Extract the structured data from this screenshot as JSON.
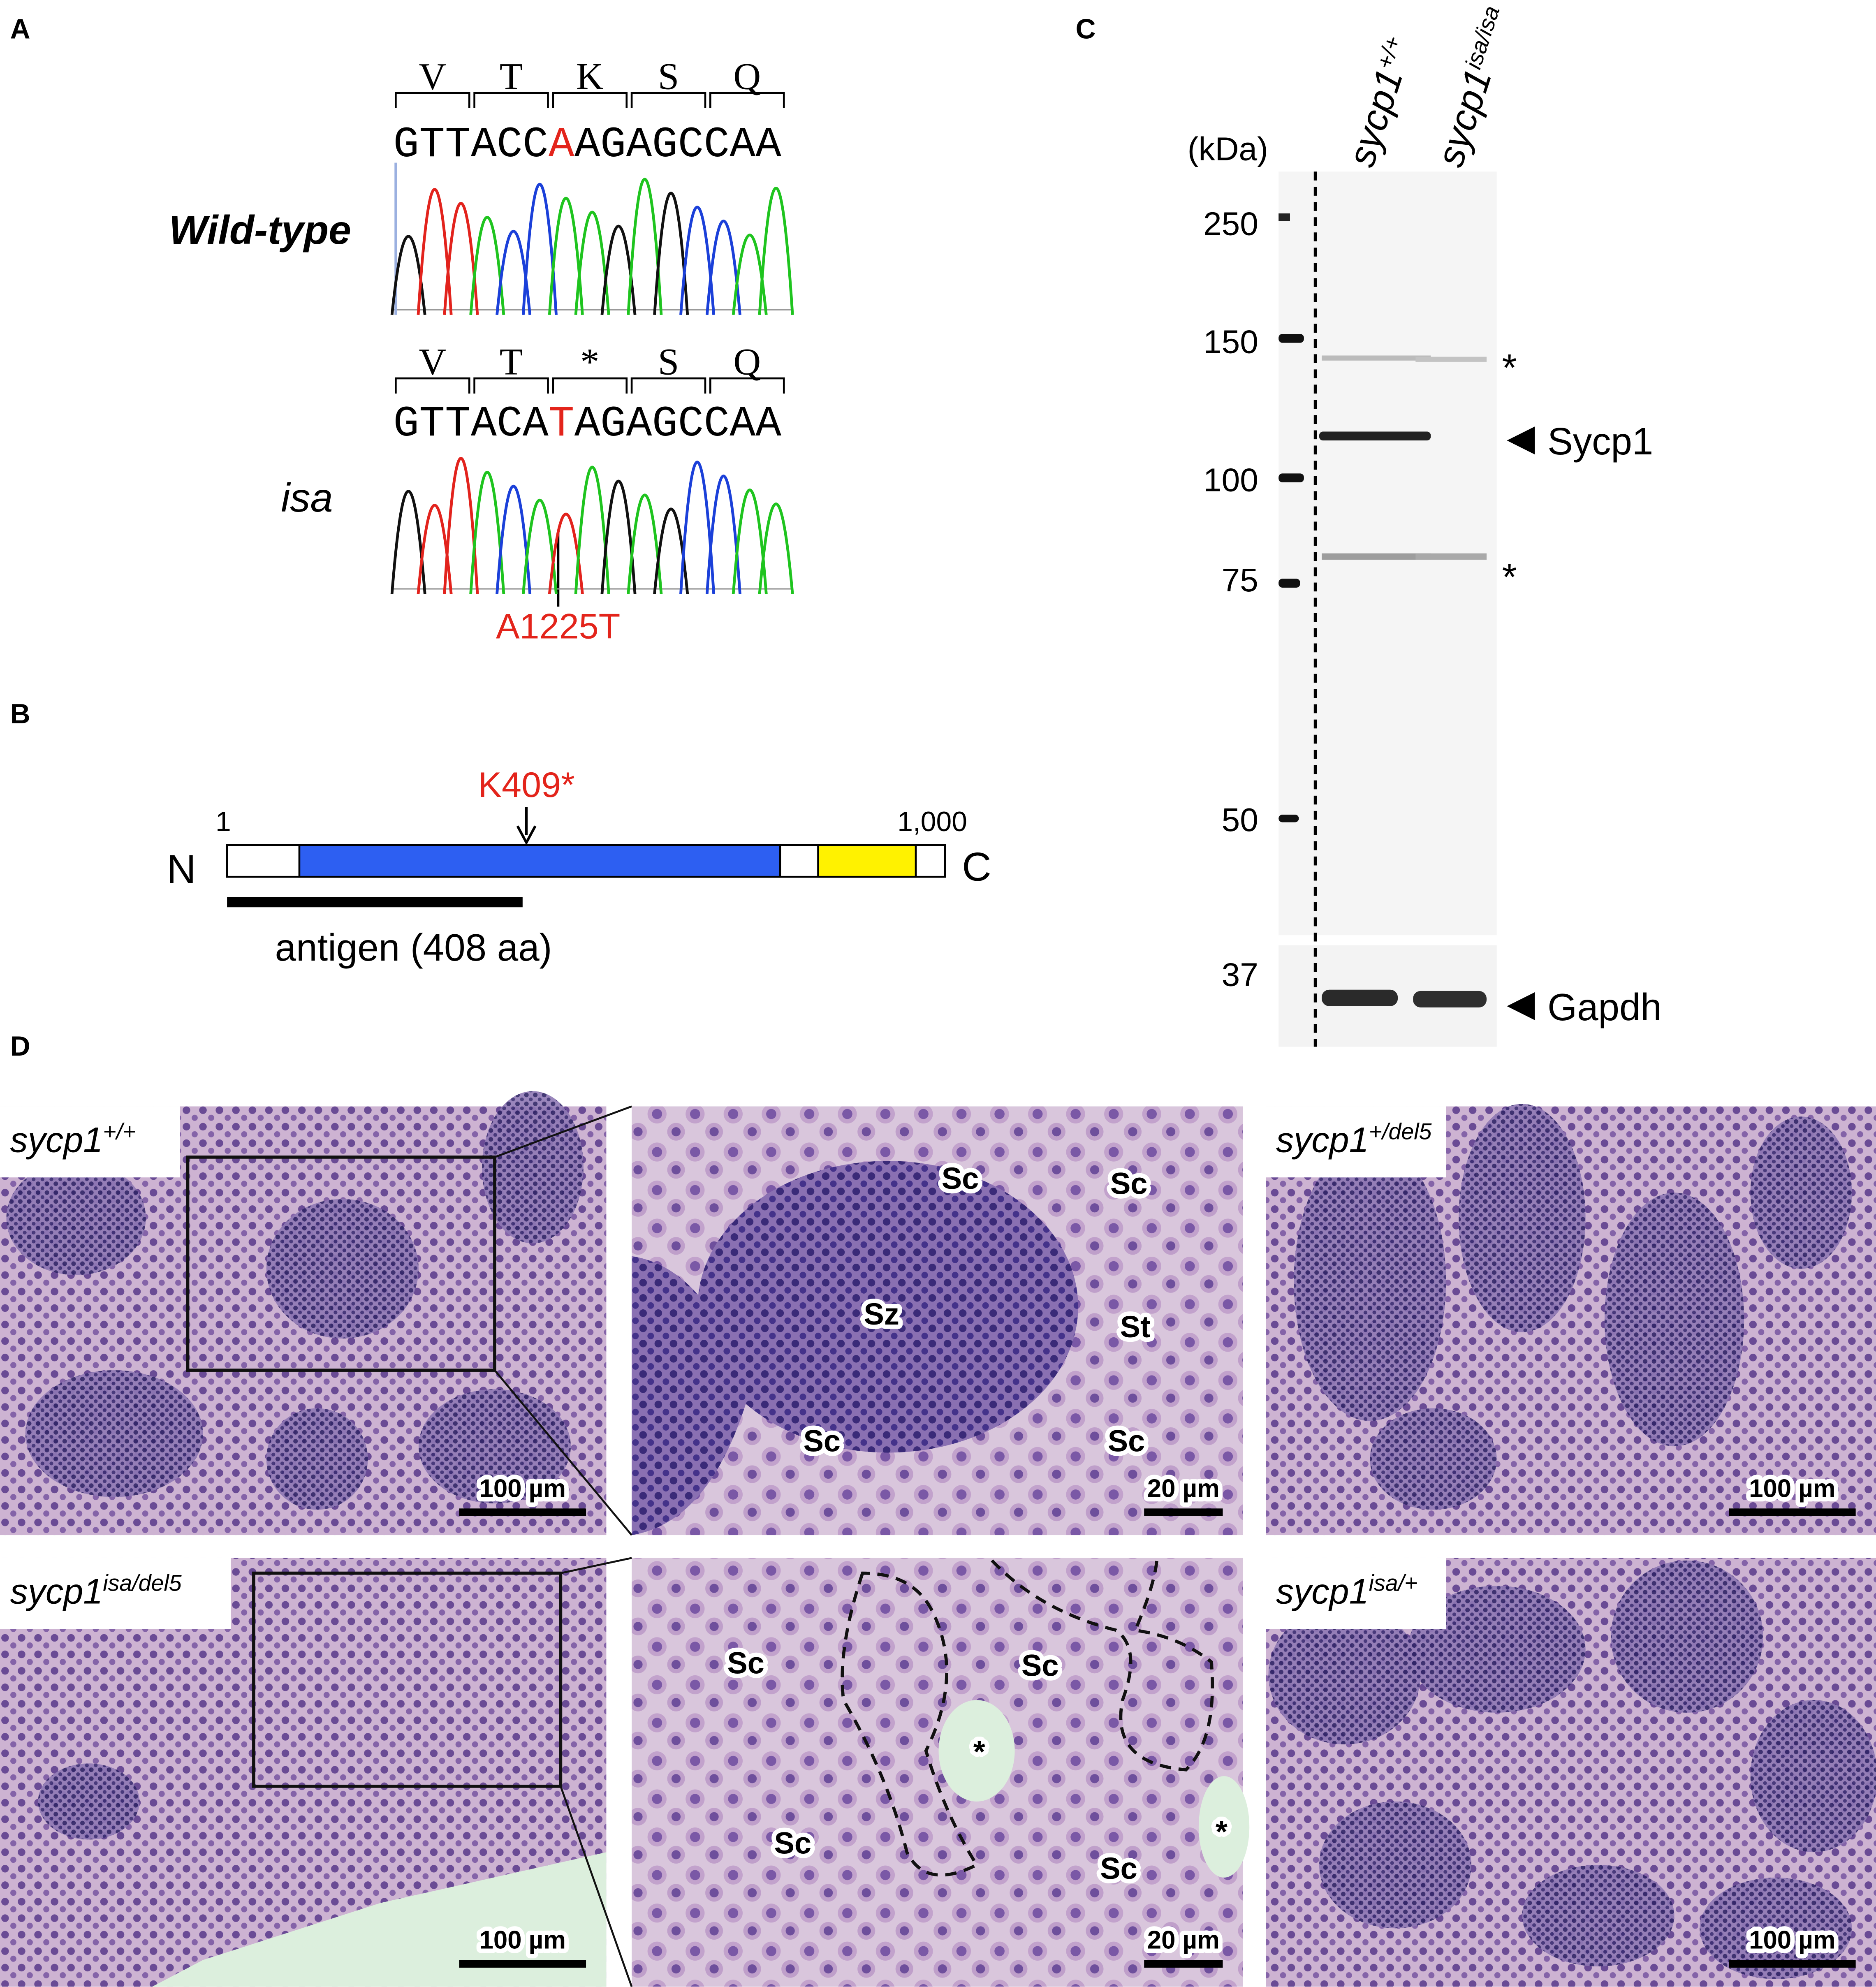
{
  "panel_a": {
    "label": "A",
    "wild_type": {
      "name": "Wild-type",
      "codons": [
        "V",
        "T",
        "K",
        "S",
        "Q"
      ],
      "sequence": [
        "GTTACC",
        "A",
        "AGAGCCAA"
      ]
    },
    "isa": {
      "name": "isa",
      "codons": [
        "V",
        "T",
        "*",
        "S",
        "Q"
      ],
      "sequence": [
        "GTTACA",
        "T",
        "AGAGCCAA"
      ]
    },
    "mutation": "A1225T"
  },
  "panel_b": {
    "label": "B",
    "mutation": "K409*",
    "start": "1",
    "end": "1,000",
    "n_terminus": "N",
    "c_terminus": "C",
    "antigen": "antigen (408 aa)"
  },
  "panel_c": {
    "label": "C",
    "unit": "(kDa)",
    "markers": [
      "250",
      "150",
      "100",
      "75",
      "50",
      "37"
    ],
    "lanes": [
      {
        "gene": "sycp1",
        "genotype": "+/+"
      },
      {
        "gene": "sycp1",
        "genotype": "isa/isa"
      }
    ],
    "nonspecific": [
      "*",
      "*"
    ],
    "bands": [
      "Sycp1",
      "Gapdh"
    ]
  },
  "panel_d": {
    "label": "D",
    "sections": [
      {
        "gene": "sycp1",
        "genotype": "+/+",
        "scale": "100 µm"
      },
      {
        "scale": "20 µm",
        "cells": [
          "Sc",
          "Sc",
          "Sz",
          "St",
          "Sc",
          "Sc"
        ]
      },
      {
        "gene": "sycp1",
        "genotype": "+/del5",
        "scale": "100 µm"
      },
      {
        "gene": "sycp1",
        "genotype": "isa/del5",
        "scale": "100 µm"
      },
      {
        "scale": "20 µm",
        "cells": [
          "Sc",
          "Sc",
          "*",
          "Sc",
          "Sc",
          "*"
        ]
      },
      {
        "gene": "sycp1",
        "genotype": "isa/+",
        "scale": "100 µm"
      }
    ]
  }
}
